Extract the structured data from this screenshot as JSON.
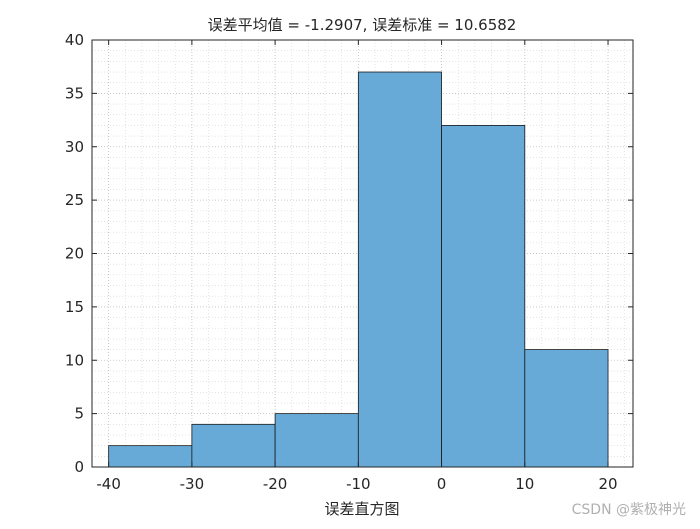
{
  "chart_data": {
    "type": "bar",
    "title": "误差平均值 = -1.2907, 误差标准 = 10.6582",
    "xlabel": "误差直方图",
    "ylabel": "",
    "bin_edges": [
      -40,
      -30,
      -20,
      -10,
      0,
      10,
      20
    ],
    "values": [
      2,
      4,
      5,
      37,
      32,
      11
    ],
    "xlim": [
      -42,
      23
    ],
    "ylim": [
      0,
      40
    ],
    "x_ticks": [
      -40,
      -30,
      -20,
      -10,
      0,
      10,
      20
    ],
    "y_ticks": [
      0,
      5,
      10,
      15,
      20,
      25,
      30,
      35,
      40
    ],
    "grid": true,
    "minor_grid": true,
    "bar_color": "#67a9d7",
    "edge_color": "#1a1a1a"
  },
  "watermark": "CSDN @紫极神光"
}
